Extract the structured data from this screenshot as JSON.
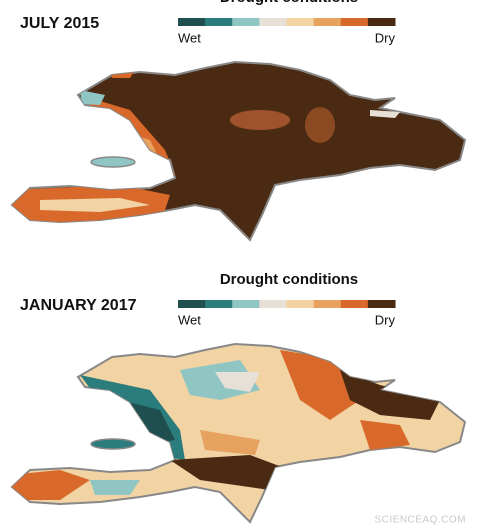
{
  "panels": [
    {
      "title": "JULY 2015",
      "legend": {
        "title": "Drought conditions",
        "wet": "Wet",
        "dry": "Dry",
        "colors": [
          "#1f4f4f",
          "#2b7d7d",
          "#8fc6c4",
          "#e6e0d6",
          "#f1d3a4",
          "#e7a25f",
          "#d8692b",
          "#4a2a12"
        ]
      }
    },
    {
      "title": "JANUARY 2017",
      "legend": {
        "title": "Drought conditions",
        "wet": "Wet",
        "dry": "Dry",
        "colors": [
          "#1f4f4f",
          "#2b7d7d",
          "#8fc6c4",
          "#e6e0d6",
          "#f1d3a4",
          "#e7a25f",
          "#d8692b",
          "#4a2a12"
        ]
      }
    }
  ],
  "watermark": "SCIENCEAQ.COM"
}
